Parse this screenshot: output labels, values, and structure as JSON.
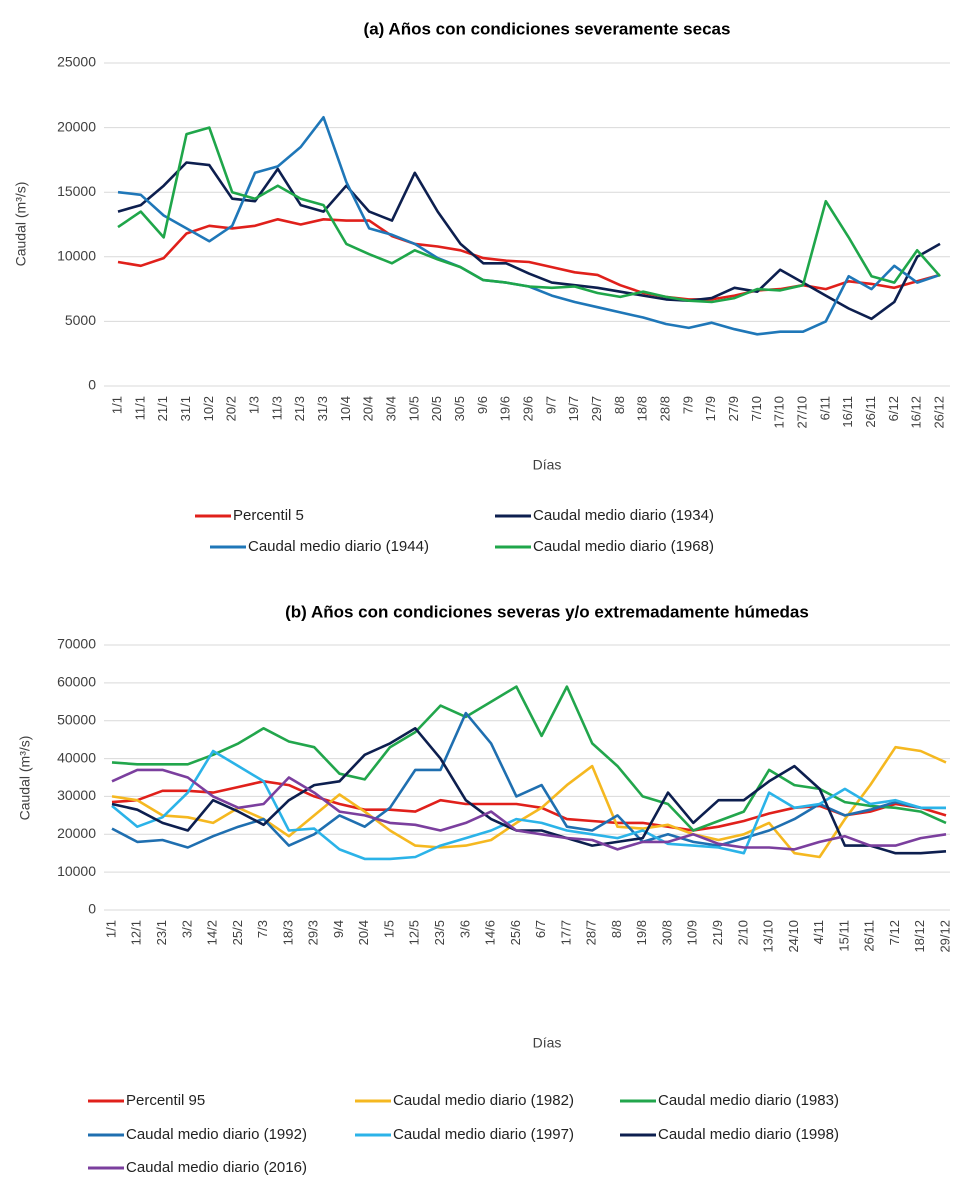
{
  "chart_data": [
    {
      "type": "line",
      "title": "(a) Años con condiciones severamente secas",
      "x_label": "Días",
      "y_label": "Caudal (m³/s)",
      "categories": [
        "1/1",
        "11/1",
        "21/1",
        "31/1",
        "10/2",
        "20/2",
        "1/3",
        "11/3",
        "21/3",
        "31/3",
        "10/4",
        "20/4",
        "30/4",
        "10/5",
        "20/5",
        "30/5",
        "9/6",
        "19/6",
        "29/6",
        "9/7",
        "19/7",
        "29/7",
        "8/8",
        "18/8",
        "28/8",
        "7/9",
        "17/9",
        "27/9",
        "7/10",
        "17/10",
        "27/10",
        "6/11",
        "16/11",
        "26/11",
        "6/12",
        "16/12",
        "26/12"
      ],
      "ylim": [
        0,
        25000
      ],
      "yticks": [
        0,
        5000,
        10000,
        15000,
        20000,
        25000
      ],
      "grid": true,
      "series": [
        {
          "name": "Percentil 5",
          "color": "#e0201b",
          "values": [
            9600,
            9300,
            9900,
            11800,
            12400,
            12200,
            12400,
            12900,
            12500,
            12900,
            12800,
            12800,
            11600,
            11000,
            10800,
            10500,
            9900,
            9700,
            9600,
            9200,
            8800,
            8600,
            7800,
            7200,
            6900,
            6700,
            6700,
            7000,
            7400,
            7500,
            7800,
            7500,
            8100,
            7900,
            7600,
            8100,
            8600
          ]
        },
        {
          "name": "Caudal medio diario (1934)",
          "color": "#0d1f4f",
          "values": [
            13500,
            14000,
            15500,
            17300,
            17100,
            14500,
            14300,
            16800,
            14000,
            13500,
            15500,
            13500,
            12800,
            16500,
            13500,
            11000,
            9500,
            9500,
            8700,
            8000,
            7800,
            7600,
            7300,
            7000,
            6700,
            6600,
            6800,
            7600,
            7300,
            9000,
            8000,
            7000,
            6000,
            5200,
            6500,
            10000,
            11000
          ]
        },
        {
          "name": "Caudal medio diario (1944)",
          "color": "#1f77b8",
          "values": [
            15000,
            14800,
            13200,
            12200,
            11200,
            12400,
            16500,
            17000,
            18500,
            20800,
            15800,
            12200,
            11700,
            11000,
            9900,
            9200,
            8200,
            8000,
            7700,
            7000,
            6500,
            6100,
            5700,
            5300,
            4800,
            4500,
            4900,
            4400,
            4000,
            4200,
            4200,
            5000,
            8500,
            7500,
            9300,
            8000,
            8600
          ]
        },
        {
          "name": "Caudal medio diario (1968)",
          "color": "#1fa64a",
          "values": [
            12300,
            13500,
            11500,
            19500,
            20000,
            15000,
            14500,
            15500,
            14500,
            14000,
            11000,
            10200,
            9500,
            10500,
            9800,
            9200,
            8200,
            8000,
            7700,
            7600,
            7700,
            7200,
            6900,
            7300,
            6900,
            6600,
            6500,
            6800,
            7500,
            7400,
            7800,
            14300,
            11500,
            8500,
            8000,
            10500,
            8500
          ]
        }
      ]
    },
    {
      "type": "line",
      "title": "(b) Años con condiciones severas y/o extremadamente húmedas",
      "x_label": "Días",
      "y_label": "Caudal (m³/s)",
      "categories": [
        "1/1",
        "12/1",
        "23/1",
        "3/2",
        "14/2",
        "25/2",
        "7/3",
        "18/3",
        "29/3",
        "9/4",
        "20/4",
        "1/5",
        "12/5",
        "23/5",
        "3/6",
        "14/6",
        "25/6",
        "6/7",
        "17/7",
        "28/7",
        "8/8",
        "19/8",
        "30/8",
        "10/9",
        "21/9",
        "2/10",
        "13/10",
        "24/10",
        "4/11",
        "15/11",
        "26/11",
        "7/12",
        "18/12",
        "29/12"
      ],
      "ylim": [
        0,
        70000
      ],
      "yticks": [
        0,
        10000,
        20000,
        30000,
        40000,
        50000,
        60000,
        70000
      ],
      "grid": true,
      "series": [
        {
          "name": "Percentil 95",
          "color": "#e0201b",
          "values": [
            28500,
            29000,
            31500,
            31500,
            31000,
            32500,
            34000,
            33000,
            30000,
            28000,
            26500,
            26500,
            26000,
            29000,
            28000,
            28000,
            28000,
            27000,
            24000,
            23500,
            23000,
            23000,
            22000,
            21000,
            22000,
            23500,
            25500,
            27000,
            27500,
            25000,
            26000,
            28000,
            27000,
            25000
          ]
        },
        {
          "name": "Caudal medio diario (1982)",
          "color": "#f5b820",
          "values": [
            30000,
            29000,
            25000,
            24500,
            23000,
            27000,
            24000,
            19500,
            25000,
            30500,
            26000,
            21000,
            17000,
            16500,
            17000,
            18500,
            23000,
            27000,
            33000,
            38000,
            22000,
            21500,
            22500,
            20000,
            18500,
            20000,
            23000,
            15000,
            14000,
            24000,
            33000,
            43000,
            42000,
            39000
          ]
        },
        {
          "name": "Caudal medio diario (1983)",
          "color": "#22a64c",
          "values": [
            39000,
            38500,
            38500,
            38500,
            41000,
            44000,
            48000,
            44500,
            43000,
            36000,
            34500,
            43000,
            47000,
            54000,
            51000,
            55000,
            59000,
            46000,
            59000,
            44000,
            38000,
            30000,
            28000,
            21000,
            23500,
            26000,
            37000,
            33000,
            32000,
            28500,
            27500,
            27000,
            26000,
            23000
          ]
        },
        {
          "name": "Caudal medio diario (1992)",
          "color": "#1f6fb0",
          "values": [
            21500,
            18000,
            18500,
            16500,
            19500,
            22000,
            24000,
            17000,
            20000,
            25000,
            22000,
            27000,
            37000,
            37000,
            52000,
            44000,
            30000,
            33000,
            22000,
            21000,
            25000,
            18000,
            20000,
            18000,
            17000,
            19000,
            21000,
            24000,
            28000,
            25000,
            26500,
            28500,
            27000,
            27000
          ]
        },
        {
          "name": "Caudal medio diario (1997)",
          "color": "#2bb3e8",
          "values": [
            27500,
            22000,
            24500,
            31000,
            42000,
            38000,
            34000,
            21000,
            21500,
            16000,
            13500,
            13500,
            14000,
            17000,
            19000,
            21000,
            24000,
            23000,
            21000,
            20000,
            19000,
            21000,
            17500,
            17000,
            16500,
            15000,
            31000,
            27000,
            28000,
            32000,
            28000,
            29000,
            27000,
            27000
          ]
        },
        {
          "name": "Caudal medio diario (1998)",
          "color": "#0d1f4f",
          "values": [
            28000,
            26500,
            23000,
            21000,
            29000,
            26000,
            22500,
            29000,
            33000,
            34000,
            41000,
            44000,
            48000,
            40000,
            29000,
            24000,
            21000,
            21000,
            19000,
            17000,
            18000,
            19000,
            31000,
            23000,
            29000,
            29000,
            34000,
            38000,
            32000,
            17000,
            17000,
            15000,
            15000,
            15500
          ]
        },
        {
          "name": "Caudal medio diario (2016)",
          "color": "#7b3f9e",
          "values": [
            34000,
            37000,
            37000,
            35000,
            30000,
            27000,
            28000,
            35000,
            31000,
            26000,
            25000,
            23000,
            22500,
            21000,
            23000,
            26000,
            21000,
            20000,
            19000,
            18500,
            16000,
            18000,
            18000,
            20000,
            17500,
            16500,
            16500,
            16000,
            18000,
            19500,
            17000,
            17000,
            19000,
            20000
          ]
        }
      ]
    }
  ]
}
